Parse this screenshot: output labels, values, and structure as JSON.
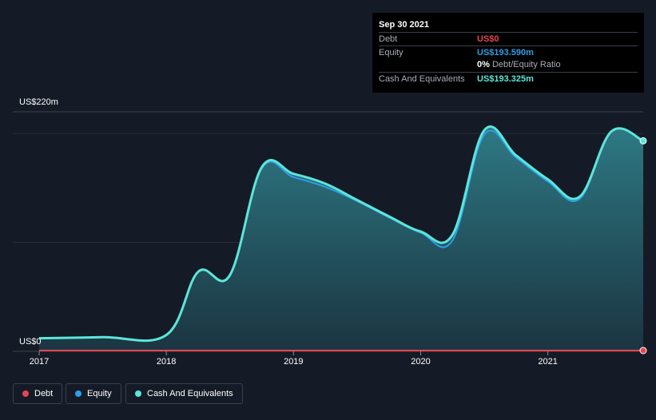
{
  "chart_data": {
    "type": "area",
    "ylabel_top": "US$220m",
    "ylabel_bottom": "US$0",
    "ylim": [
      0,
      220
    ],
    "xlim": [
      2017.0,
      2021.75
    ],
    "x_ticks": [
      "2017",
      "2018",
      "2019",
      "2020",
      "2021"
    ],
    "grid": true,
    "legend_position": "bottom-left",
    "series": [
      {
        "name": "Debt",
        "color": "#e64552",
        "x": [
          2017.0,
          2021.75
        ],
        "values": [
          0,
          0
        ]
      },
      {
        "name": "Equity",
        "color": "#2e9fe6",
        "x": [
          2017.0,
          2017.5,
          2018.0,
          2018.25,
          2018.5,
          2018.75,
          2019.0,
          2019.25,
          2019.5,
          2019.75,
          2020.0,
          2020.25,
          2020.5,
          2020.75,
          2021.0,
          2021.25,
          2021.5,
          2021.75
        ],
        "values": [
          12,
          13,
          15,
          73,
          70,
          168,
          160,
          151,
          138,
          123,
          109,
          102,
          199,
          178,
          156,
          140,
          202,
          193.59
        ]
      },
      {
        "name": "Cash And Equivalents",
        "color": "#5ce6da",
        "x": [
          2017.0,
          2017.5,
          2018.0,
          2018.25,
          2018.5,
          2018.75,
          2019.0,
          2019.25,
          2019.5,
          2019.75,
          2020.0,
          2020.25,
          2020.5,
          2020.75,
          2021.0,
          2021.25,
          2021.5,
          2021.75
        ],
        "values": [
          12,
          13,
          15,
          73,
          70,
          169,
          163,
          154,
          139,
          124,
          110,
          107,
          203,
          180,
          158,
          142,
          202,
          193.325
        ]
      }
    ]
  },
  "tooltip": {
    "date": "Sep 30 2021",
    "debt_label": "Debt",
    "debt_value": "US$0",
    "equity_label": "Equity",
    "equity_value": "US$193.590m",
    "ratio_pct": "0%",
    "ratio_label": "Debt/Equity Ratio",
    "cash_label": "Cash And Equivalents",
    "cash_value": "US$193.325m"
  },
  "legend": {
    "debt": "Debt",
    "equity": "Equity",
    "cash": "Cash And Equivalents"
  },
  "colors": {
    "debt": "#e64552",
    "equity": "#2e9fe6",
    "cash": "#5ce6da",
    "background": "#151b26"
  }
}
